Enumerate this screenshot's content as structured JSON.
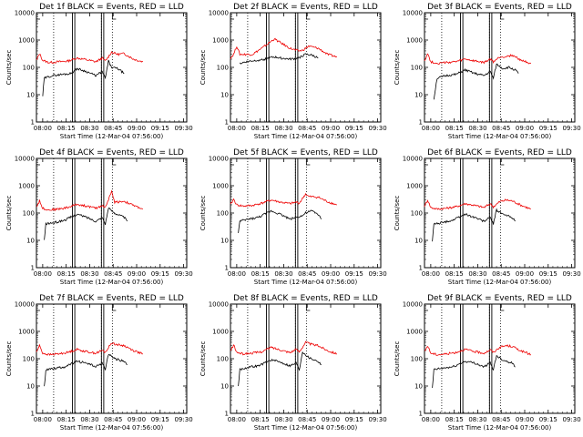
{
  "colors": {
    "events": "#000000",
    "lld": "#ee0000",
    "marker": "#000000"
  },
  "panel_titles": [
    "Det 1f BLACK = Events, RED = LLD",
    "Det 2f BLACK = Events, RED = LLD",
    "Det 3f BLACK = Events, RED = LLD",
    "Det 4f BLACK = Events, RED = LLD",
    "Det 5f BLACK = Events, RED = LLD",
    "Det 6f BLACK = Events, RED = LLD",
    "Det 7f BLACK = Events, RED = LLD",
    "Det 8f BLACK = Events, RED = LLD",
    "Det 9f BLACK = Events, RED = LLD"
  ],
  "ylabel": "Counts/sec",
  "xlabel": "Start Time (12-Mar-04 07:56:00)",
  "xticks": [
    "08:00",
    "08:15",
    "08:30",
    "08:45",
    "09:00",
    "09:15",
    "09:30"
  ],
  "yticks": [
    "1",
    "10",
    "100",
    "1000",
    "10000"
  ],
  "chart_data": {
    "type": "line",
    "xunit": "minutes after 07:56:00",
    "xlim": [
      0,
      96
    ],
    "ylim": [
      1,
      10000
    ],
    "yscale": "log",
    "grid": false,
    "event_marker_x": [
      11,
      23,
      24.5,
      41.5,
      43,
      48.5
    ],
    "dotted_marker_x": [
      11,
      41.5,
      48.5
    ],
    "solid_marker_x": [
      23,
      24.5,
      41.5,
      43
    ],
    "series_labels": [
      "Events",
      "LLD"
    ],
    "panels": [
      {
        "det": "1f",
        "lld": [
          [
            0,
            180
          ],
          [
            2,
            320
          ],
          [
            4,
            180
          ],
          [
            8,
            150
          ],
          [
            14,
            160
          ],
          [
            20,
            170
          ],
          [
            26,
            220
          ],
          [
            32,
            190
          ],
          [
            38,
            160
          ],
          [
            42,
            220
          ],
          [
            44,
            170
          ],
          [
            48,
            360
          ],
          [
            52,
            300
          ],
          [
            56,
            320
          ],
          [
            62,
            200
          ],
          [
            68,
            160
          ]
        ],
        "events": [
          [
            4,
            9
          ],
          [
            5,
            40
          ],
          [
            10,
            50
          ],
          [
            16,
            55
          ],
          [
            22,
            60
          ],
          [
            26,
            90
          ],
          [
            32,
            70
          ],
          [
            38,
            50
          ],
          [
            42,
            70
          ],
          [
            44,
            40
          ],
          [
            46,
            170
          ],
          [
            48,
            100
          ],
          [
            52,
            90
          ],
          [
            56,
            60
          ]
        ]
      },
      {
        "det": "2f",
        "lld": [
          [
            0,
            220
          ],
          [
            2,
            300
          ],
          [
            4,
            600
          ],
          [
            6,
            300
          ],
          [
            14,
            300
          ],
          [
            20,
            500
          ],
          [
            26,
            900
          ],
          [
            28,
            1100
          ],
          [
            32,
            800
          ],
          [
            38,
            500
          ],
          [
            42,
            420
          ],
          [
            44,
            400
          ],
          [
            46,
            420
          ],
          [
            50,
            600
          ],
          [
            56,
            500
          ],
          [
            62,
            300
          ],
          [
            68,
            240
          ]
        ],
        "events": [
          [
            6,
            140
          ],
          [
            10,
            160
          ],
          [
            16,
            180
          ],
          [
            22,
            200
          ],
          [
            28,
            240
          ],
          [
            32,
            220
          ],
          [
            38,
            200
          ],
          [
            42,
            210
          ],
          [
            44,
            230
          ],
          [
            48,
            300
          ],
          [
            52,
            280
          ],
          [
            56,
            220
          ]
        ]
      },
      {
        "det": "3f",
        "lld": [
          [
            0,
            180
          ],
          [
            2,
            320
          ],
          [
            4,
            160
          ],
          [
            8,
            140
          ],
          [
            14,
            150
          ],
          [
            20,
            160
          ],
          [
            26,
            200
          ],
          [
            32,
            170
          ],
          [
            38,
            150
          ],
          [
            42,
            200
          ],
          [
            44,
            160
          ],
          [
            48,
            240
          ],
          [
            52,
            250
          ],
          [
            56,
            280
          ],
          [
            62,
            180
          ],
          [
            68,
            140
          ]
        ],
        "events": [
          [
            6,
            7
          ],
          [
            8,
            40
          ],
          [
            14,
            50
          ],
          [
            20,
            55
          ],
          [
            26,
            80
          ],
          [
            32,
            60
          ],
          [
            38,
            50
          ],
          [
            42,
            70
          ],
          [
            44,
            40
          ],
          [
            46,
            130
          ],
          [
            50,
            90
          ],
          [
            54,
            100
          ],
          [
            58,
            80
          ],
          [
            60,
            60
          ]
        ]
      },
      {
        "det": "4f",
        "lld": [
          [
            0,
            170
          ],
          [
            2,
            280
          ],
          [
            4,
            150
          ],
          [
            8,
            130
          ],
          [
            14,
            140
          ],
          [
            20,
            160
          ],
          [
            26,
            210
          ],
          [
            32,
            180
          ],
          [
            38,
            150
          ],
          [
            42,
            190
          ],
          [
            44,
            160
          ],
          [
            48,
            600
          ],
          [
            50,
            250
          ],
          [
            56,
            270
          ],
          [
            62,
            190
          ],
          [
            68,
            140
          ]
        ],
        "events": [
          [
            5,
            10
          ],
          [
            6,
            40
          ],
          [
            12,
            45
          ],
          [
            18,
            55
          ],
          [
            26,
            90
          ],
          [
            32,
            70
          ],
          [
            38,
            50
          ],
          [
            42,
            70
          ],
          [
            44,
            40
          ],
          [
            46,
            150
          ],
          [
            50,
            100
          ],
          [
            56,
            70
          ],
          [
            58,
            50
          ]
        ]
      },
      {
        "det": "5f",
        "lld": [
          [
            0,
            200
          ],
          [
            2,
            320
          ],
          [
            4,
            200
          ],
          [
            8,
            180
          ],
          [
            14,
            190
          ],
          [
            20,
            230
          ],
          [
            26,
            300
          ],
          [
            32,
            250
          ],
          [
            38,
            220
          ],
          [
            42,
            250
          ],
          [
            44,
            230
          ],
          [
            48,
            500
          ],
          [
            50,
            400
          ],
          [
            56,
            380
          ],
          [
            62,
            260
          ],
          [
            68,
            200
          ]
        ],
        "events": [
          [
            5,
            20
          ],
          [
            6,
            50
          ],
          [
            12,
            60
          ],
          [
            18,
            70
          ],
          [
            26,
            120
          ],
          [
            32,
            90
          ],
          [
            38,
            60
          ],
          [
            42,
            70
          ],
          [
            46,
            80
          ],
          [
            48,
            100
          ],
          [
            52,
            120
          ],
          [
            56,
            90
          ],
          [
            58,
            60
          ]
        ]
      },
      {
        "det": "6f",
        "lld": [
          [
            0,
            180
          ],
          [
            2,
            300
          ],
          [
            4,
            160
          ],
          [
            8,
            140
          ],
          [
            14,
            150
          ],
          [
            20,
            170
          ],
          [
            26,
            220
          ],
          [
            32,
            190
          ],
          [
            38,
            160
          ],
          [
            42,
            220
          ],
          [
            44,
            170
          ],
          [
            48,
            260
          ],
          [
            52,
            300
          ],
          [
            56,
            280
          ],
          [
            62,
            190
          ],
          [
            68,
            140
          ]
        ],
        "events": [
          [
            5,
            9
          ],
          [
            6,
            40
          ],
          [
            12,
            45
          ],
          [
            18,
            55
          ],
          [
            26,
            90
          ],
          [
            32,
            70
          ],
          [
            38,
            50
          ],
          [
            42,
            70
          ],
          [
            44,
            40
          ],
          [
            46,
            130
          ],
          [
            50,
            90
          ],
          [
            56,
            70
          ],
          [
            58,
            50
          ]
        ]
      },
      {
        "det": "7f",
        "lld": [
          [
            0,
            180
          ],
          [
            2,
            300
          ],
          [
            4,
            160
          ],
          [
            8,
            140
          ],
          [
            14,
            150
          ],
          [
            20,
            170
          ],
          [
            26,
            220
          ],
          [
            32,
            180
          ],
          [
            38,
            160
          ],
          [
            42,
            200
          ],
          [
            44,
            170
          ],
          [
            48,
            380
          ],
          [
            52,
            320
          ],
          [
            56,
            300
          ],
          [
            62,
            200
          ],
          [
            68,
            150
          ]
        ],
        "events": [
          [
            5,
            9
          ],
          [
            6,
            40
          ],
          [
            12,
            45
          ],
          [
            18,
            50
          ],
          [
            26,
            80
          ],
          [
            32,
            70
          ],
          [
            38,
            50
          ],
          [
            42,
            70
          ],
          [
            44,
            40
          ],
          [
            46,
            150
          ],
          [
            50,
            100
          ],
          [
            56,
            80
          ],
          [
            58,
            60
          ]
        ]
      },
      {
        "det": "8f",
        "lld": [
          [
            0,
            190
          ],
          [
            2,
            320
          ],
          [
            4,
            170
          ],
          [
            8,
            150
          ],
          [
            14,
            160
          ],
          [
            20,
            180
          ],
          [
            26,
            260
          ],
          [
            32,
            210
          ],
          [
            38,
            170
          ],
          [
            42,
            220
          ],
          [
            44,
            180
          ],
          [
            48,
            400
          ],
          [
            52,
            330
          ],
          [
            56,
            300
          ],
          [
            62,
            200
          ],
          [
            68,
            150
          ]
        ],
        "events": [
          [
            5,
            10
          ],
          [
            6,
            40
          ],
          [
            12,
            50
          ],
          [
            18,
            55
          ],
          [
            26,
            90
          ],
          [
            32,
            75
          ],
          [
            38,
            55
          ],
          [
            42,
            70
          ],
          [
            44,
            40
          ],
          [
            46,
            180
          ],
          [
            50,
            110
          ],
          [
            56,
            80
          ],
          [
            58,
            60
          ]
        ]
      },
      {
        "det": "9f",
        "lld": [
          [
            0,
            180
          ],
          [
            2,
            300
          ],
          [
            4,
            160
          ],
          [
            8,
            140
          ],
          [
            14,
            150
          ],
          [
            20,
            170
          ],
          [
            26,
            220
          ],
          [
            32,
            180
          ],
          [
            38,
            160
          ],
          [
            42,
            210
          ],
          [
            44,
            170
          ],
          [
            48,
            260
          ],
          [
            52,
            300
          ],
          [
            56,
            280
          ],
          [
            62,
            190
          ],
          [
            68,
            140
          ]
        ],
        "events": [
          [
            5,
            8
          ],
          [
            6,
            40
          ],
          [
            12,
            45
          ],
          [
            18,
            50
          ],
          [
            26,
            80
          ],
          [
            32,
            70
          ],
          [
            38,
            50
          ],
          [
            42,
            70
          ],
          [
            44,
            40
          ],
          [
            46,
            130
          ],
          [
            50,
            90
          ],
          [
            56,
            70
          ],
          [
            58,
            50
          ]
        ]
      }
    ]
  }
}
